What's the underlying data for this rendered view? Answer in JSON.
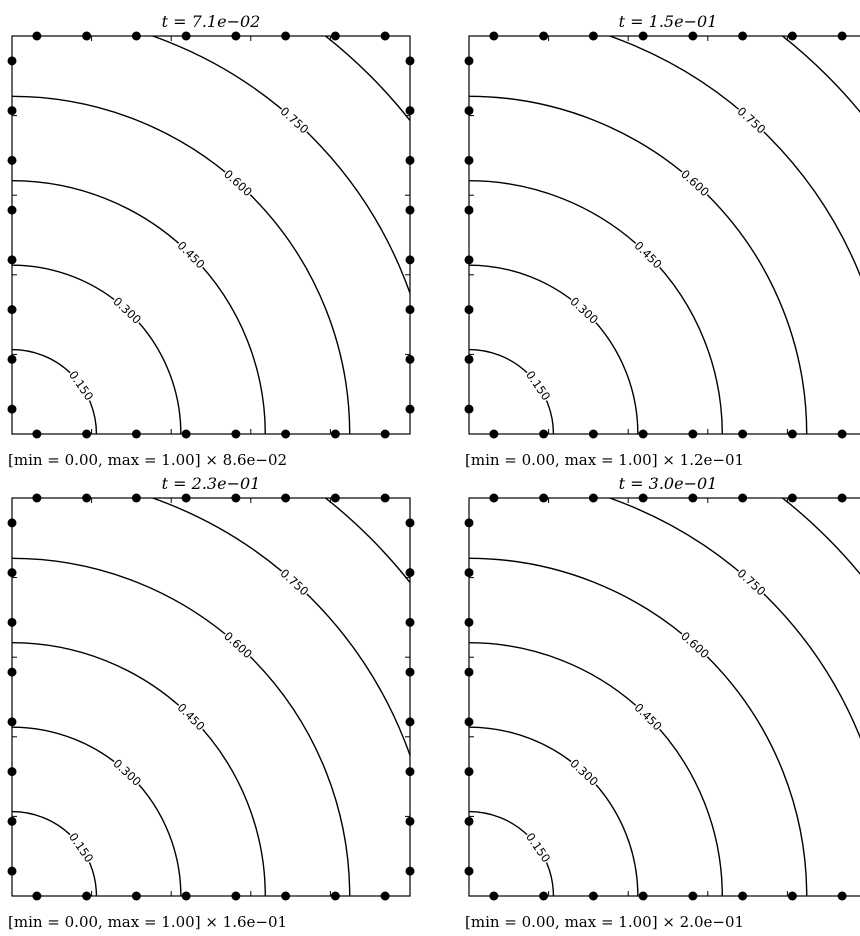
{
  "chart_data": [
    {
      "type": "contour",
      "title": "t = 7.1e−02",
      "caption": "[min = 0.00,   max = 1.00]   ×  8.6e−02",
      "contour_levels": [
        0.15,
        0.3,
        0.45,
        0.6,
        0.75,
        0.9
      ],
      "contour_labels": [
        "0.150",
        "0.300",
        "0.450",
        "0.600",
        "0.750",
        ""
      ],
      "xlim": [
        0,
        1
      ],
      "ylim": [
        0,
        1
      ],
      "grid": false
    },
    {
      "type": "contour",
      "title": "t = 1.5e−01",
      "caption": "[min = 0.00,   max = 1.00]   ×  1.2e−01",
      "contour_levels": [
        0.15,
        0.3,
        0.45,
        0.6,
        0.75,
        0.9
      ],
      "contour_labels": [
        "0.150",
        "0.300",
        "0.450",
        "0.600",
        "0.750",
        ""
      ],
      "xlim": [
        0,
        1
      ],
      "ylim": [
        0,
        1
      ],
      "grid": false
    },
    {
      "type": "contour",
      "title": "t = 2.3e−01",
      "caption": "[min = 0.00,   max = 1.00]   ×  1.6e−01",
      "contour_levels": [
        0.15,
        0.3,
        0.45,
        0.6,
        0.75,
        0.9
      ],
      "contour_labels": [
        "0.150",
        "0.300",
        "0.450",
        "0.600",
        "0.750",
        ""
      ],
      "xlim": [
        0,
        1
      ],
      "ylim": [
        0,
        1
      ],
      "grid": false
    },
    {
      "type": "contour",
      "title": "t = 3.0e−01",
      "caption": "[min = 0.00,   max = 1.00]   ×  2.0e−01",
      "contour_levels": [
        0.15,
        0.3,
        0.45,
        0.6,
        0.75,
        0.9
      ],
      "contour_labels": [
        "0.150",
        "0.300",
        "0.450",
        "0.600",
        "0.750",
        ""
      ],
      "xlim": [
        0,
        1
      ],
      "ylim": [
        0,
        1
      ],
      "grid": false
    }
  ]
}
